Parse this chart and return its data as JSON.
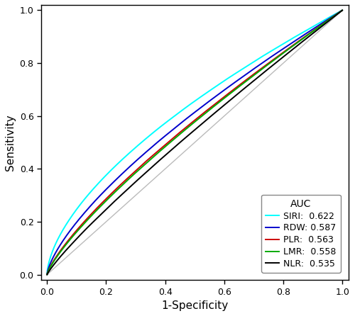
{
  "xlabel": "1-Specificity",
  "ylabel": "Sensitivity",
  "xlim": [
    -0.02,
    1.02
  ],
  "ylim": [
    -0.02,
    1.02
  ],
  "xticks": [
    0.0,
    0.2,
    0.4,
    0.6,
    0.8,
    1.0
  ],
  "yticks": [
    0.0,
    0.2,
    0.4,
    0.6,
    0.8,
    1.0
  ],
  "legend_title": "AUC",
  "curves": [
    {
      "label": "SIRI:  0.622",
      "color": "#00FFFF",
      "auc": 0.622,
      "seed": 101
    },
    {
      "label": "RDW: 0.587",
      "color": "#0000CC",
      "auc": 0.587,
      "seed": 202
    },
    {
      "label": "PLR:  0.563",
      "color": "#CC0000",
      "auc": 0.563,
      "seed": 303
    },
    {
      "label": "LMR:  0.558",
      "color": "#00AA00",
      "auc": 0.558,
      "seed": 404
    },
    {
      "label": "NLR:  0.535",
      "color": "#000000",
      "auc": 0.535,
      "seed": 505
    }
  ],
  "diagonal_color": "#bbbbbb",
  "background_color": "#ffffff",
  "line_width": 1.4,
  "font_size": 11,
  "tick_fontsize": 9,
  "legend_fontsize": 9,
  "legend_title_fontsize": 10
}
